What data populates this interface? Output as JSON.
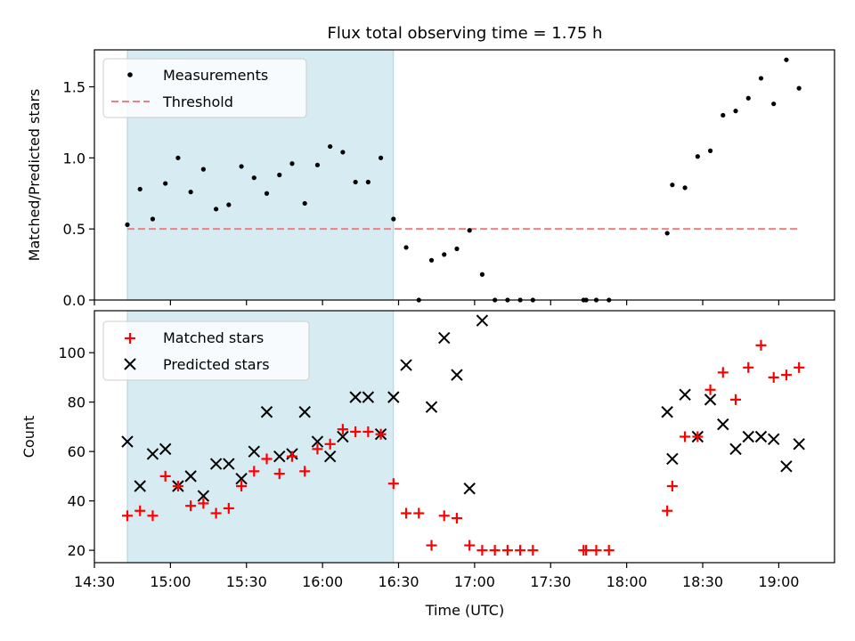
{
  "chart_data": [
    {
      "type": "scatter",
      "title": "Flux total observing time = 1.75 h",
      "xlabel": "",
      "ylabel": "Matched/Predicted stars",
      "xlim": [
        "14:30",
        "19:22"
      ],
      "ylim": [
        0,
        1.76
      ],
      "xticks": [
        "14:30",
        "15:00",
        "15:30",
        "16:00",
        "16:30",
        "17:00",
        "17:30",
        "18:00",
        "18:30",
        "19:00"
      ],
      "show_x_tick_labels": false,
      "yticks": [
        0.0,
        0.5,
        1.0,
        1.5
      ],
      "ytick_labels": [
        "0.0",
        "0.5",
        "1.0",
        "1.5"
      ],
      "grid": false,
      "legend_position": "upper-left",
      "shaded_interval": {
        "start": "14:43",
        "end": "16:28",
        "color": "#add8e6"
      },
      "colors": {
        "measurements": "#000000",
        "threshold": "#f08080",
        "matched": "#ff0000",
        "predicted": "#000000"
      },
      "series": [
        {
          "name": "Measurements",
          "marker": "dot",
          "x": [
            "14:43",
            "14:48",
            "14:53",
            "14:58",
            "15:03",
            "15:08",
            "15:13",
            "15:18",
            "15:23",
            "15:28",
            "15:33",
            "15:38",
            "15:43",
            "15:48",
            "15:53",
            "15:58",
            "16:03",
            "16:08",
            "16:13",
            "16:18",
            "16:23",
            "16:28",
            "16:33",
            "16:38",
            "16:43",
            "16:48",
            "16:53",
            "16:58",
            "17:03",
            "17:08",
            "17:13",
            "17:18",
            "17:23",
            "17:43",
            "17:44",
            "17:48",
            "17:53",
            "18:16",
            "18:18",
            "18:23",
            "18:28",
            "18:33",
            "18:38",
            "18:43",
            "18:48",
            "18:53",
            "18:58",
            "19:03",
            "19:08"
          ],
          "y": [
            0.53,
            0.78,
            0.57,
            0.82,
            1.0,
            0.76,
            0.92,
            0.64,
            0.67,
            0.94,
            0.86,
            0.75,
            0.88,
            0.96,
            0.68,
            0.95,
            1.08,
            1.04,
            0.83,
            0.83,
            1.0,
            0.57,
            0.37,
            0.0,
            0.28,
            0.32,
            0.36,
            0.49,
            0.18,
            0.0,
            0.0,
            0.0,
            0.0,
            0.0,
            0.0,
            0.0,
            0.0,
            0.47,
            0.81,
            0.79,
            1.01,
            1.05,
            1.3,
            1.33,
            1.42,
            1.56,
            1.38,
            1.69,
            1.49
          ]
        },
        {
          "name": "Threshold",
          "style": "dashed",
          "x": [
            "14:43",
            "19:08"
          ],
          "y": [
            0.5,
            0.5
          ]
        }
      ]
    },
    {
      "type": "scatter",
      "title": "",
      "xlabel": "Time (UTC)",
      "ylabel": "Count",
      "xlim": [
        "14:30",
        "19:22"
      ],
      "ylim": [
        15,
        117
      ],
      "xticks": [
        "14:30",
        "15:00",
        "15:30",
        "16:00",
        "16:30",
        "17:00",
        "17:30",
        "18:00",
        "18:30",
        "19:00"
      ],
      "yticks": [
        20,
        40,
        60,
        80,
        100
      ],
      "ytick_labels": [
        "20",
        "40",
        "60",
        "80",
        "100"
      ],
      "grid": false,
      "legend_position": "upper-left",
      "shaded_interval": {
        "start": "14:43",
        "end": "16:28",
        "color": "#add8e6"
      },
      "series": [
        {
          "name": "Matched stars",
          "marker": "plus",
          "x": [
            "14:43",
            "14:48",
            "14:53",
            "14:58",
            "15:03",
            "15:08",
            "15:13",
            "15:18",
            "15:23",
            "15:28",
            "15:33",
            "15:38",
            "15:43",
            "15:48",
            "15:53",
            "15:58",
            "16:03",
            "16:08",
            "16:13",
            "16:18",
            "16:23",
            "16:28",
            "16:33",
            "16:38",
            "16:43",
            "16:48",
            "16:53",
            "16:58",
            "17:03",
            "17:08",
            "17:13",
            "17:18",
            "17:23",
            "17:43",
            "17:44",
            "17:48",
            "17:53",
            "18:16",
            "18:18",
            "18:23",
            "18:28",
            "18:33",
            "18:38",
            "18:43",
            "18:48",
            "18:53",
            "18:58",
            "19:03",
            "19:08"
          ],
          "y": [
            34,
            36,
            34,
            50,
            46,
            38,
            39,
            35,
            37,
            46,
            52,
            57,
            51,
            58,
            52,
            61,
            63,
            69,
            68,
            68,
            67,
            47,
            35,
            35,
            22,
            34,
            33,
            22,
            20,
            20,
            20,
            20,
            20,
            20,
            20,
            20,
            20,
            36,
            46,
            66,
            66,
            85,
            92,
            81,
            94,
            103,
            90,
            91,
            94
          ]
        },
        {
          "name": "Predicted stars",
          "marker": "x",
          "x": [
            "14:43",
            "14:48",
            "14:53",
            "14:58",
            "15:03",
            "15:08",
            "15:13",
            "15:18",
            "15:23",
            "15:28",
            "15:33",
            "15:38",
            "15:43",
            "15:48",
            "15:53",
            "15:58",
            "16:03",
            "16:08",
            "16:13",
            "16:18",
            "16:23",
            "16:28",
            "16:33",
            "16:43",
            "16:48",
            "16:53",
            "16:58",
            "17:03",
            "18:16",
            "18:18",
            "18:23",
            "18:28",
            "18:33",
            "18:38",
            "18:43",
            "18:48",
            "18:53",
            "18:58",
            "19:03",
            "19:08"
          ],
          "y": [
            64,
            46,
            59,
            61,
            46,
            50,
            42,
            55,
            55,
            49,
            60,
            76,
            58,
            59,
            76,
            64,
            58,
            66,
            82,
            82,
            67,
            82,
            95,
            78,
            106,
            91,
            45,
            113,
            76,
            57,
            83,
            66,
            81,
            71,
            61,
            66,
            66,
            65,
            54,
            63
          ]
        }
      ]
    }
  ]
}
